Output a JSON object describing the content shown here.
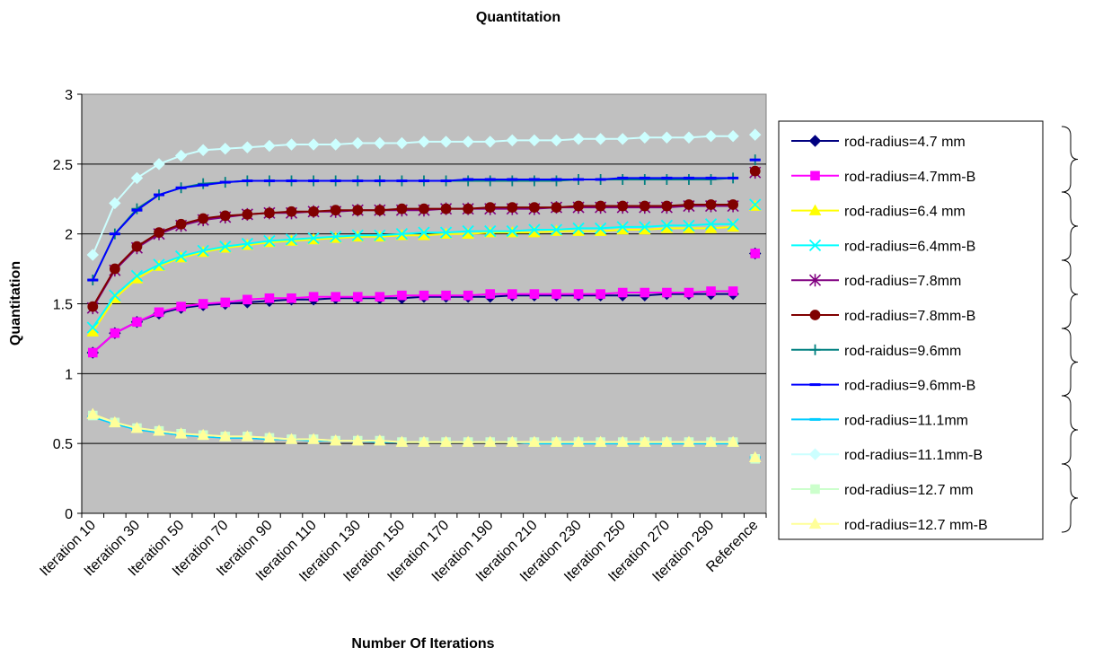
{
  "chart_data": {
    "type": "line",
    "title": "Quantitation",
    "xlabel": "Number Of Iterations",
    "ylabel": "Quantitation",
    "ylim": [
      0,
      3
    ],
    "yticks": [
      "0",
      "0.5",
      "1",
      "1.5",
      "2",
      "2.5",
      "3"
    ],
    "grid": true,
    "plot_background": "#c0c0c0",
    "legend_position": "right",
    "categories": [
      "Iteration 10",
      "Iteration 20",
      "Iteration 30",
      "Iteration 40",
      "Iteration 50",
      "Iteration 60",
      "Iteration 70",
      "Iteration 80",
      "Iteration 90",
      "Iteration 100",
      "Iteration 110",
      "Iteration 120",
      "Iteration 130",
      "Iteration 140",
      "Iteration 150",
      "Iteration 160",
      "Iteration 170",
      "Iteration 180",
      "Iteration 190",
      "Iteration 200",
      "Iteration 210",
      "Iteration 220",
      "Iteration 230",
      "Iteration 240",
      "Iteration 250",
      "Iteration 260",
      "Iteration 270",
      "Iteration 280",
      "Iteration 290",
      "Iteration 300",
      "Reference"
    ],
    "tick_labels": [
      "Iteration 10",
      "Iteration 30",
      "Iteration 50",
      "Iteration 70",
      "Iteration 90",
      "Iteration 110",
      "Iteration 130",
      "Iteration 150",
      "Iteration 170",
      "Iteration 190",
      "Iteration 210",
      "Iteration 230",
      "Iteration 250",
      "Iteration 270",
      "Iteration 290",
      "Reference"
    ],
    "series": [
      {
        "name": "rod-radius=4.7 mm",
        "color": "#000080",
        "marker": "diamond",
        "values": [
          1.15,
          1.29,
          1.37,
          1.43,
          1.47,
          1.49,
          1.5,
          1.51,
          1.52,
          1.53,
          1.53,
          1.54,
          1.54,
          1.54,
          1.54,
          1.55,
          1.55,
          1.55,
          1.55,
          1.56,
          1.56,
          1.56,
          1.56,
          1.56,
          1.56,
          1.56,
          1.57,
          1.57,
          1.57,
          1.57,
          1.86
        ]
      },
      {
        "name": "rod-radius=4.7mm-B",
        "color": "#ff00ff",
        "marker": "square",
        "values": [
          1.15,
          1.29,
          1.37,
          1.44,
          1.48,
          1.5,
          1.51,
          1.53,
          1.54,
          1.54,
          1.55,
          1.55,
          1.55,
          1.55,
          1.56,
          1.56,
          1.56,
          1.56,
          1.57,
          1.57,
          1.57,
          1.57,
          1.57,
          1.57,
          1.58,
          1.58,
          1.58,
          1.58,
          1.59,
          1.59,
          1.86
        ]
      },
      {
        "name": "rod-radius=6.4 mm",
        "color": "#ffff00",
        "marker": "triangle",
        "values": [
          1.3,
          1.54,
          1.68,
          1.77,
          1.83,
          1.87,
          1.9,
          1.92,
          1.94,
          1.95,
          1.96,
          1.97,
          1.98,
          1.98,
          1.99,
          1.99,
          2.0,
          2.0,
          2.01,
          2.01,
          2.01,
          2.02,
          2.02,
          2.02,
          2.03,
          2.03,
          2.04,
          2.04,
          2.04,
          2.05,
          2.2
        ]
      },
      {
        "name": "rod-radius=6.4mm-B",
        "color": "#00ffff",
        "marker": "x",
        "values": [
          1.33,
          1.56,
          1.7,
          1.78,
          1.84,
          1.88,
          1.91,
          1.93,
          1.95,
          1.96,
          1.97,
          1.98,
          1.99,
          1.99,
          2.0,
          2.01,
          2.01,
          2.02,
          2.02,
          2.02,
          2.03,
          2.03,
          2.04,
          2.04,
          2.05,
          2.05,
          2.06,
          2.06,
          2.07,
          2.07,
          2.21
        ]
      },
      {
        "name": "rod-radius=7.8mm",
        "color": "#800080",
        "marker": "star",
        "values": [
          1.47,
          1.74,
          1.9,
          2.0,
          2.06,
          2.1,
          2.12,
          2.14,
          2.15,
          2.15,
          2.16,
          2.16,
          2.17,
          2.17,
          2.17,
          2.17,
          2.18,
          2.18,
          2.18,
          2.18,
          2.18,
          2.19,
          2.19,
          2.19,
          2.19,
          2.19,
          2.19,
          2.2,
          2.2,
          2.2,
          2.44
        ]
      },
      {
        "name": "rod-radius=7.8mm-B",
        "color": "#800000",
        "marker": "circle",
        "values": [
          1.48,
          1.75,
          1.91,
          2.01,
          2.07,
          2.11,
          2.13,
          2.14,
          2.15,
          2.16,
          2.16,
          2.17,
          2.17,
          2.17,
          2.18,
          2.18,
          2.18,
          2.18,
          2.19,
          2.19,
          2.19,
          2.19,
          2.2,
          2.2,
          2.2,
          2.2,
          2.2,
          2.21,
          2.21,
          2.21,
          2.45
        ]
      },
      {
        "name": "rod-raidus=9.6mm",
        "color": "#008080",
        "marker": "plus",
        "values": [
          1.67,
          2.0,
          2.18,
          2.28,
          2.33,
          2.36,
          2.37,
          2.38,
          2.38,
          2.38,
          2.38,
          2.38,
          2.38,
          2.38,
          2.38,
          2.38,
          2.38,
          2.38,
          2.38,
          2.38,
          2.38,
          2.38,
          2.39,
          2.39,
          2.39,
          2.39,
          2.39,
          2.39,
          2.39,
          2.4,
          2.53
        ]
      },
      {
        "name": "rod-radius=9.6mm-B",
        "color": "#0000ff",
        "marker": "dash",
        "values": [
          1.67,
          2.0,
          2.17,
          2.28,
          2.33,
          2.35,
          2.37,
          2.38,
          2.38,
          2.38,
          2.38,
          2.38,
          2.38,
          2.38,
          2.38,
          2.38,
          2.38,
          2.39,
          2.39,
          2.39,
          2.39,
          2.39,
          2.39,
          2.39,
          2.4,
          2.4,
          2.4,
          2.4,
          2.4,
          2.4,
          2.53
        ]
      },
      {
        "name": "rod-radius=11.1mm",
        "color": "#00ccff",
        "marker": "bar",
        "values": [
          0.69,
          0.64,
          0.6,
          0.58,
          0.56,
          0.55,
          0.54,
          0.54,
          0.53,
          0.53,
          0.52,
          0.52,
          0.52,
          0.51,
          0.51,
          0.51,
          0.51,
          0.51,
          0.51,
          0.51,
          0.5,
          0.5,
          0.5,
          0.5,
          0.5,
          0.5,
          0.5,
          0.5,
          0.5,
          0.5,
          0.4
        ]
      },
      {
        "name": "rod-radius=11.1mm-B",
        "color": "#ccffff",
        "marker": "diamond",
        "values": [
          1.85,
          2.22,
          2.4,
          2.5,
          2.56,
          2.6,
          2.61,
          2.62,
          2.63,
          2.64,
          2.64,
          2.64,
          2.65,
          2.65,
          2.65,
          2.66,
          2.66,
          2.66,
          2.66,
          2.67,
          2.67,
          2.67,
          2.68,
          2.68,
          2.68,
          2.69,
          2.69,
          2.69,
          2.7,
          2.7,
          2.71
        ]
      },
      {
        "name": "rod-radius=12.7 mm",
        "color": "#ccffcc",
        "marker": "square",
        "values": [
          0.7,
          0.65,
          0.61,
          0.59,
          0.57,
          0.56,
          0.55,
          0.55,
          0.54,
          0.53,
          0.53,
          0.52,
          0.52,
          0.52,
          0.51,
          0.51,
          0.51,
          0.51,
          0.51,
          0.51,
          0.51,
          0.51,
          0.51,
          0.51,
          0.51,
          0.51,
          0.51,
          0.51,
          0.51,
          0.51,
          0.39
        ]
      },
      {
        "name": "rod-radius=12.7 mm-B",
        "color": "#ffff99",
        "marker": "triangle",
        "values": [
          0.71,
          0.65,
          0.61,
          0.59,
          0.57,
          0.56,
          0.55,
          0.55,
          0.54,
          0.53,
          0.53,
          0.52,
          0.52,
          0.52,
          0.51,
          0.51,
          0.51,
          0.51,
          0.51,
          0.51,
          0.51,
          0.51,
          0.51,
          0.51,
          0.51,
          0.51,
          0.51,
          0.51,
          0.51,
          0.51,
          0.4
        ]
      }
    ]
  }
}
